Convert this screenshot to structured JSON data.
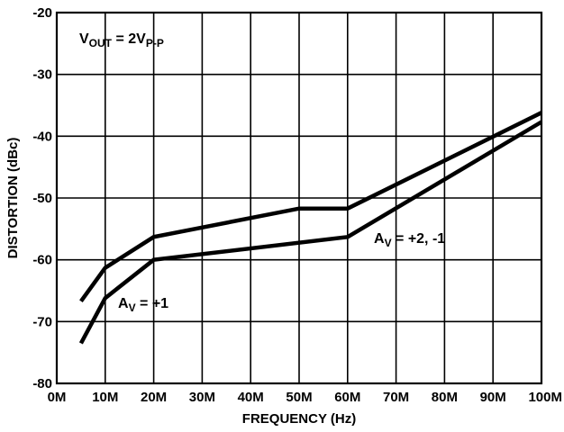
{
  "chart_data": {
    "type": "line",
    "xlabel": "FREQUENCY (Hz)",
    "ylabel": "DISTORTION (dBc)",
    "xlim": [
      0,
      100
    ],
    "ylim": [
      -80,
      -20
    ],
    "x_ticks": [
      "0M",
      "10M",
      "20M",
      "30M",
      "40M",
      "50M",
      "60M",
      "70M",
      "80M",
      "90M",
      "100M"
    ],
    "y_ticks": [
      "-20",
      "-30",
      "-40",
      "-50",
      "-60",
      "-70",
      "-80"
    ],
    "grid": true,
    "annotations": {
      "vout": {
        "main": "V",
        "sub": "OUT",
        "rest": " = 2V",
        "sub2": "P-P"
      },
      "av_gain1": {
        "main": "A",
        "sub": "V",
        "rest": " = +1"
      },
      "av_gain2": {
        "main": "A",
        "sub": "V",
        "rest": " = +2, -1"
      }
    },
    "series": [
      {
        "name": "AV = +1",
        "x": [
          5,
          10,
          20,
          60,
          100
        ],
        "y": [
          -73.5,
          -66.2,
          -60,
          -56.3,
          -37.7
        ]
      },
      {
        "name": "AV = +2, -1",
        "x": [
          5,
          10,
          20,
          50,
          60,
          100
        ],
        "y": [
          -66.7,
          -61.3,
          -56.3,
          -51.7,
          -51.7,
          -36.2
        ]
      }
    ]
  }
}
